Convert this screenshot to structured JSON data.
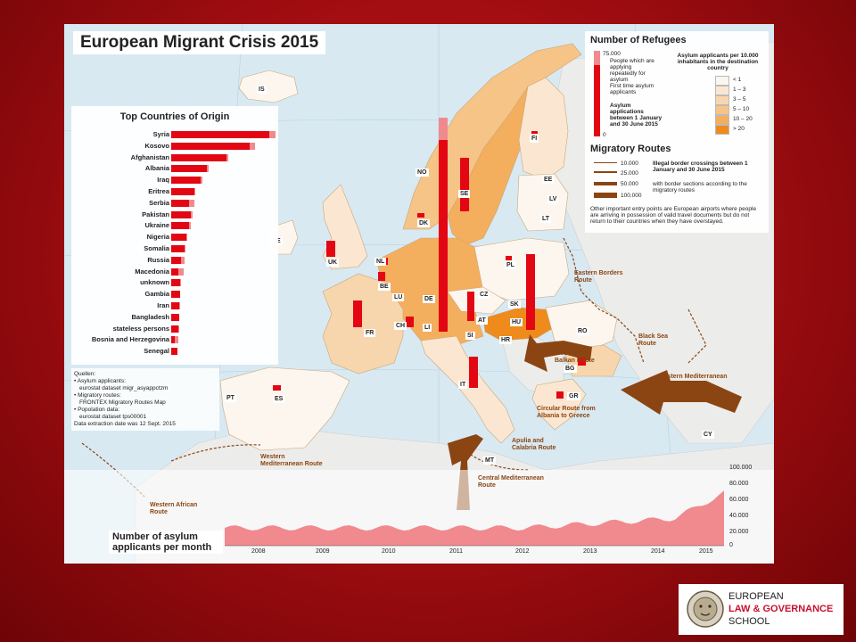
{
  "map": {
    "title": "European Migrant Crisis 2015",
    "countries": [
      {
        "code": "IS"
      },
      {
        "code": "NO"
      },
      {
        "code": "SE"
      },
      {
        "code": "FI"
      },
      {
        "code": "EE"
      },
      {
        "code": "LV"
      },
      {
        "code": "LT"
      },
      {
        "code": "DK"
      },
      {
        "code": "IE"
      },
      {
        "code": "UK"
      },
      {
        "code": "NL"
      },
      {
        "code": "BE"
      },
      {
        "code": "LU"
      },
      {
        "code": "DE"
      },
      {
        "code": "PL"
      },
      {
        "code": "CZ"
      },
      {
        "code": "SK"
      },
      {
        "code": "AT"
      },
      {
        "code": "HU"
      },
      {
        "code": "CH"
      },
      {
        "code": "LI"
      },
      {
        "code": "FR"
      },
      {
        "code": "SI"
      },
      {
        "code": "HR"
      },
      {
        "code": "RO"
      },
      {
        "code": "BG"
      },
      {
        "code": "IT"
      },
      {
        "code": "PT"
      },
      {
        "code": "ES"
      },
      {
        "code": "GR"
      },
      {
        "code": "MT"
      },
      {
        "code": "CY"
      }
    ],
    "routes": [
      {
        "name": "Eastern Borders Route"
      },
      {
        "name": "Black Sea Route"
      },
      {
        "name": "Western Balkan Route"
      },
      {
        "name": "Eastern Mediterranean Route"
      },
      {
        "name": "Circular Route from Albania to Greece"
      },
      {
        "name": "Apulia and Calabria Route"
      },
      {
        "name": "Central Mediterranean Route"
      },
      {
        "name": "Western Mediterranean Route"
      },
      {
        "name": "Western African Route"
      }
    ]
  },
  "origins": {
    "title": "Top Countries of Origin",
    "items": [
      {
        "name": "Syria",
        "first": 100,
        "repeat": 6
      },
      {
        "name": "Kosovo",
        "first": 80,
        "repeat": 5
      },
      {
        "name": "Afghanistan",
        "first": 56,
        "repeat": 2
      },
      {
        "name": "Albania",
        "first": 36,
        "repeat": 2
      },
      {
        "name": "Iraq",
        "first": 30,
        "repeat": 2
      },
      {
        "name": "Eritrea",
        "first": 24,
        "repeat": 1
      },
      {
        "name": "Serbia",
        "first": 18,
        "repeat": 6
      },
      {
        "name": "Pakistan",
        "first": 20,
        "repeat": 2
      },
      {
        "name": "Ukraine",
        "first": 18,
        "repeat": 2
      },
      {
        "name": "Nigeria",
        "first": 15,
        "repeat": 1
      },
      {
        "name": "Somalia",
        "first": 14,
        "repeat": 1
      },
      {
        "name": "Russia",
        "first": 10,
        "repeat": 4
      },
      {
        "name": "Macedonia",
        "first": 7,
        "repeat": 6
      },
      {
        "name": "unknown",
        "first": 9,
        "repeat": 1
      },
      {
        "name": "Gambia",
        "first": 9,
        "repeat": 0
      },
      {
        "name": "Iran",
        "first": 8,
        "repeat": 1
      },
      {
        "name": "Bangladesh",
        "first": 8,
        "repeat": 0
      },
      {
        "name": "stateless persons",
        "first": 7,
        "repeat": 1
      },
      {
        "name": "Bosnia and Herzegovina",
        "first": 4,
        "repeat": 3
      },
      {
        "name": "Senegal",
        "first": 6,
        "repeat": 0
      }
    ]
  },
  "sources": {
    "heading": "Quellen:",
    "lines": [
      "• Asylum applicants:",
      "  eurostat dataset migr_asyappctzm",
      "• Migratory routes:",
      "  FRONTEX Migratory Routes Map",
      "• Popolation data:",
      "  eurostat dataset tps00001",
      "Data extraction date was 12 Sept. 2015"
    ]
  },
  "legend": {
    "refugees_title": "Number of Refugees",
    "scale_top": "75.000",
    "scale_bottom": "0",
    "repeat_label": "People which are applying repeatedly for asylum",
    "first_label": "First time asylum applicants",
    "period_label": "Asylum applications between 1 January and 30 June 2015",
    "density_title": "Asylum applicants per 10.000 inhabitants in the destination country",
    "density_classes": [
      {
        "label": "< 1",
        "color": "#fdf6ee"
      },
      {
        "label": "1 – 3",
        "color": "#fbe7d1"
      },
      {
        "label": "3 – 5",
        "color": "#f8d6ad"
      },
      {
        "label": "5 – 10",
        "color": "#f6c487"
      },
      {
        "label": "10 – 20",
        "color": "#f3ae5e"
      },
      {
        "label": "> 20",
        "color": "#ee8b1c"
      }
    ],
    "routes_title": "Migratory Routes",
    "route_scale": [
      "10.000",
      "25.000",
      "50.000",
      "100.000"
    ],
    "route_desc1": "Illegal border crossings between 1 January and 30 June 2015",
    "route_desc2": "with border sections according to the migratory routes",
    "airports_note": "Other important entry points are European airports where people are arriving in possession of valid travel documents but do not return to their countries when they have overstayed."
  },
  "timeline": {
    "label": "Number of asylum applicants per month",
    "years": [
      "2008",
      "2009",
      "2010",
      "2011",
      "2012",
      "2013",
      "2014",
      "2015"
    ],
    "yticks": [
      "100.000",
      "80.000",
      "60.000",
      "40.000",
      "20.000",
      "0"
    ]
  },
  "logo": {
    "line1": "EUROPEAN",
    "line2": "LAW & GOVERNANCE",
    "line3": "SCHOOL"
  }
}
